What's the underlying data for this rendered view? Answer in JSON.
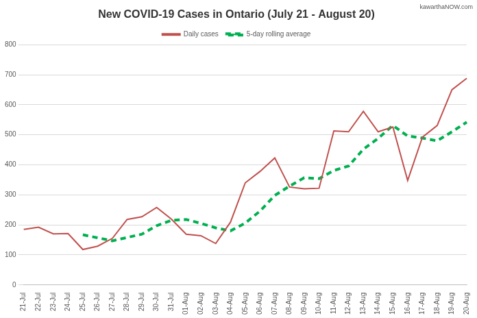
{
  "chart_data": {
    "type": "line",
    "title": "New COVID-19 Cases in Ontario (July 21 - August 20)",
    "source": "kawarthaNOW.com",
    "categories": [
      "21-Jul",
      "22-Jul",
      "23-Jul",
      "24-Jul",
      "25-Jul",
      "26-Jul",
      "27-Jul",
      "28-Jul",
      "29-Jul",
      "30-Jul",
      "31-Jul",
      "01-Aug",
      "02-Aug",
      "03-Aug",
      "04-Aug",
      "05-Aug",
      "06-Aug",
      "07-Aug",
      "08-Aug",
      "09-Aug",
      "10-Aug",
      "11-Aug",
      "12-Aug",
      "13-Aug",
      "14-Aug",
      "15-Aug",
      "16-Aug",
      "17-Aug",
      "18-Aug",
      "19-Aug",
      "20-Aug"
    ],
    "series": [
      {
        "name": "Daily cases",
        "color": "#c0504d",
        "line_style": "solid",
        "values": [
          185,
          192,
          170,
          171,
          118,
          129,
          155,
          218,
          227,
          258,
          219,
          169,
          164,
          138,
          209,
          340,
          378,
          423,
          326,
          320,
          322,
          513,
          510,
          578,
          510,
          526,
          348,
          492,
          531,
          650,
          688
        ]
      },
      {
        "name": "5-day rolling average",
        "color": "#00b050",
        "line_style": "dashed",
        "values": [
          null,
          null,
          null,
          null,
          167,
          157,
          147,
          158,
          169,
          197,
          215,
          218,
          205,
          190,
          180,
          206,
          246,
          298,
          329,
          357,
          354,
          381,
          396,
          452,
          488,
          531,
          496,
          489,
          480,
          510,
          542
        ]
      }
    ],
    "ylim": [
      0,
      800
    ],
    "yticks": [
      0,
      100,
      200,
      300,
      400,
      500,
      600,
      700,
      800
    ],
    "grid": true,
    "legend": "top"
  }
}
